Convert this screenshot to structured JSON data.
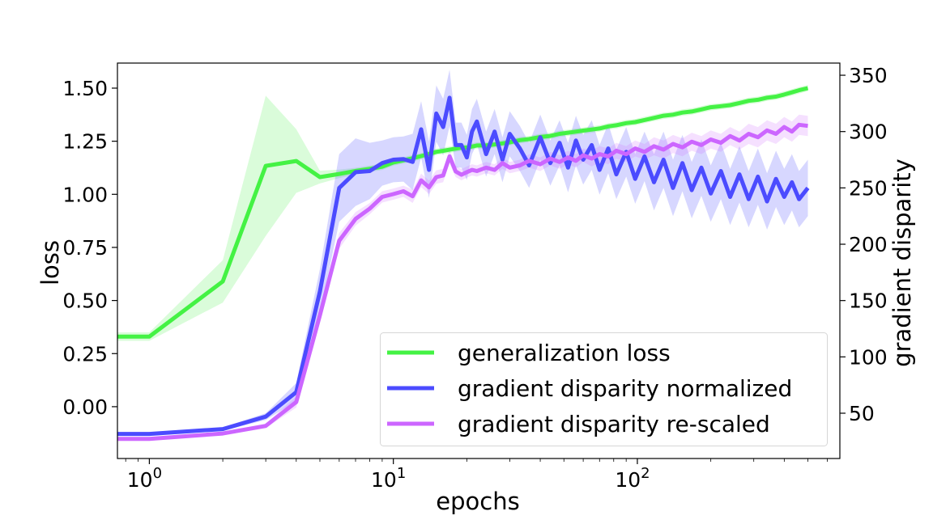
{
  "chart_data": {
    "type": "line",
    "xlabel": "epochs",
    "ylabel": "loss",
    "ylabel_right": "gradient disparity",
    "xscale": "log",
    "xlim": [
      0.74,
      676
    ],
    "ylim": [
      -0.244,
      1.618
    ],
    "ylim_right": [
      9.8,
      360.8
    ],
    "x_ticks": [
      {
        "value": 1,
        "base": "10",
        "exp": "0"
      },
      {
        "value": 10,
        "base": "10",
        "exp": "1"
      },
      {
        "value": 100,
        "base": "10",
        "exp": "2"
      }
    ],
    "y_ticks": [
      {
        "value": 0,
        "label": "0.00"
      },
      {
        "value": 0.25,
        "label": "0.25"
      },
      {
        "value": 0.5,
        "label": "0.50"
      },
      {
        "value": 0.75,
        "label": "0.75"
      },
      {
        "value": 1.0,
        "label": "1.00"
      },
      {
        "value": 1.25,
        "label": "1.25"
      },
      {
        "value": 1.5,
        "label": "1.50"
      }
    ],
    "y_ticks_right": [
      {
        "value": 50,
        "label": "50"
      },
      {
        "value": 100,
        "label": "100"
      },
      {
        "value": 150,
        "label": "150"
      },
      {
        "value": 200,
        "label": "200"
      },
      {
        "value": 250,
        "label": "250"
      },
      {
        "value": 300,
        "label": "300"
      },
      {
        "value": 350,
        "label": "350"
      }
    ],
    "grid": false,
    "legend_position": "lower-right",
    "x": [
      0,
      1,
      2,
      3,
      4,
      5,
      6,
      7,
      8,
      9,
      10,
      11,
      12,
      13,
      14,
      15,
      16,
      17,
      18,
      19,
      20,
      21,
      22,
      24,
      26,
      28,
      30,
      33,
      36,
      40,
      44,
      48,
      52,
      56,
      60,
      65,
      70,
      76,
      82,
      90,
      98,
      107,
      117,
      128,
      140,
      153,
      167,
      183,
      200,
      220,
      240,
      262,
      286,
      312,
      340,
      370,
      400,
      430,
      460,
      500
    ],
    "series": [
      {
        "name": "generalization loss",
        "axis": "left",
        "color": "#44f244",
        "values": [
          0.33,
          0.33,
          0.59,
          1.134,
          1.157,
          1.081,
          1.096,
          1.11,
          1.12,
          1.13,
          1.15,
          1.16,
          1.17,
          1.18,
          1.19,
          1.2,
          1.205,
          1.21,
          1.215,
          1.22,
          1.22,
          1.225,
          1.23,
          1.23,
          1.235,
          1.24,
          1.245,
          1.255,
          1.26,
          1.27,
          1.275,
          1.285,
          1.29,
          1.295,
          1.3,
          1.305,
          1.31,
          1.32,
          1.325,
          1.335,
          1.34,
          1.35,
          1.36,
          1.37,
          1.375,
          1.385,
          1.39,
          1.4,
          1.41,
          1.415,
          1.42,
          1.43,
          1.44,
          1.445,
          1.455,
          1.46,
          1.47,
          1.48,
          1.49,
          1.5
        ],
        "std": [
          0.02,
          0.02,
          0.1,
          0.33,
          0.15,
          0.03,
          0.02,
          0.015,
          0.015,
          0.015,
          0.015,
          0.015,
          0.015,
          0.015,
          0.015,
          0.015,
          0.015,
          0.015,
          0.015,
          0.015,
          0.015,
          0.015,
          0.015,
          0.015,
          0.015,
          0.015,
          0.015,
          0.015,
          0.015,
          0.015,
          0.015,
          0.015,
          0.015,
          0.015,
          0.015,
          0.015,
          0.015,
          0.015,
          0.015,
          0.015,
          0.015,
          0.015,
          0.015,
          0.015,
          0.015,
          0.015,
          0.015,
          0.015,
          0.015,
          0.015,
          0.015,
          0.015,
          0.015,
          0.015,
          0.015,
          0.015,
          0.015,
          0.015,
          0.015,
          0.015
        ]
      },
      {
        "name": "gradient disparity normalized",
        "axis": "right",
        "color": "#4b4bff",
        "values": [
          31.6,
          31.6,
          35.9,
          47,
          68.7,
          158,
          250,
          264,
          265,
          272,
          275,
          275.6,
          273,
          302,
          266,
          316,
          304,
          330,
          288,
          288,
          277,
          300,
          309,
          280,
          300,
          275,
          298,
          285,
          270,
          295,
          272,
          290,
          268,
          292,
          275,
          288,
          266,
          285,
          262,
          282,
          258,
          278,
          255,
          275,
          250,
          272,
          248,
          268,
          245,
          265,
          242,
          262,
          240,
          260,
          238,
          258,
          242,
          255,
          240,
          250
        ],
        "std": [
          1,
          1,
          1.5,
          3,
          8,
          20,
          30,
          30,
          25,
          20,
          20,
          20,
          25,
          25,
          25,
          25,
          25,
          25,
          20,
          20,
          20,
          20,
          20,
          20,
          20,
          20,
          20,
          20,
          20,
          20,
          20,
          20,
          22,
          22,
          22,
          22,
          22,
          22,
          22,
          22,
          22,
          22,
          25,
          25,
          25,
          25,
          25,
          25,
          25,
          25,
          25,
          25,
          25,
          25,
          25,
          25,
          25,
          25,
          25,
          25
        ]
      },
      {
        "name": "gradient disparity re-scaled",
        "axis": "right",
        "color": "#cc66ff",
        "values": [
          27.2,
          27.2,
          32,
          38.7,
          60,
          137,
          203,
          222.5,
          231.6,
          242,
          244.5,
          247,
          242.6,
          256.7,
          250.5,
          259.6,
          261,
          278,
          264.6,
          261.7,
          264,
          266,
          265,
          268,
          266,
          272,
          268,
          270,
          274,
          271,
          276,
          273,
          277,
          274,
          279,
          276,
          280,
          278,
          283,
          280,
          285,
          282,
          287,
          284,
          289,
          286,
          291,
          288,
          293,
          290,
          296,
          292,
          298,
          295,
          301,
          298,
          304,
          300,
          306,
          305
        ],
        "std": [
          1,
          1,
          1.5,
          2,
          5,
          7,
          7,
          6,
          5,
          5,
          5,
          5,
          6,
          6,
          6,
          6,
          6,
          6,
          5,
          5,
          5,
          5,
          5,
          5,
          5,
          5,
          5,
          5,
          6,
          6,
          6,
          6,
          6,
          6,
          6,
          7,
          7,
          7,
          7,
          7,
          7,
          7,
          8,
          8,
          8,
          8,
          8,
          8,
          8,
          8,
          8,
          8,
          9,
          9,
          9,
          9,
          9,
          9,
          9,
          9
        ]
      }
    ]
  }
}
